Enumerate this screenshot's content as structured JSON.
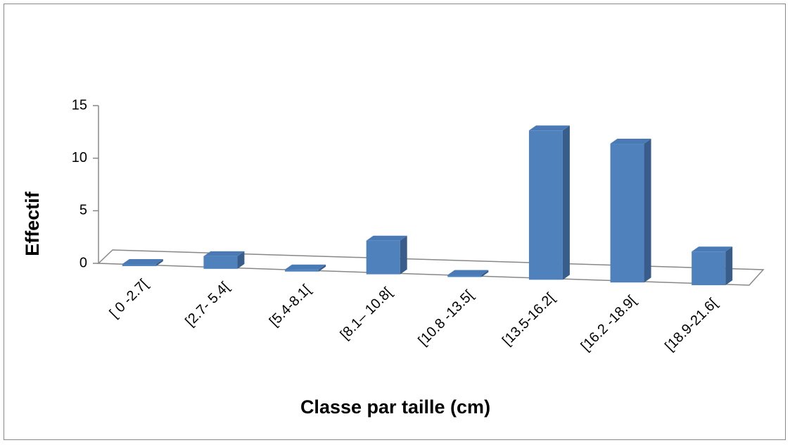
{
  "chart_data": {
    "type": "bar3d",
    "categories": [
      "[ 0 -2.7[",
      "[2.7- 5.4[",
      "[5.4-8.1[",
      "[8.1– 10.8[",
      "[10.8 -13.5[",
      "[13.5-16.2[",
      "[16.2 -18.9[",
      "[18.9-21.6["
    ],
    "values": [
      0,
      1,
      0,
      3,
      0,
      14,
      13,
      3
    ],
    "color": "#4f81bd",
    "xlabel": "Classe par taille (cm)",
    "ylabel": "Effectif",
    "ylim": [
      0,
      15
    ],
    "yticks": [
      0,
      5,
      10,
      15
    ]
  }
}
